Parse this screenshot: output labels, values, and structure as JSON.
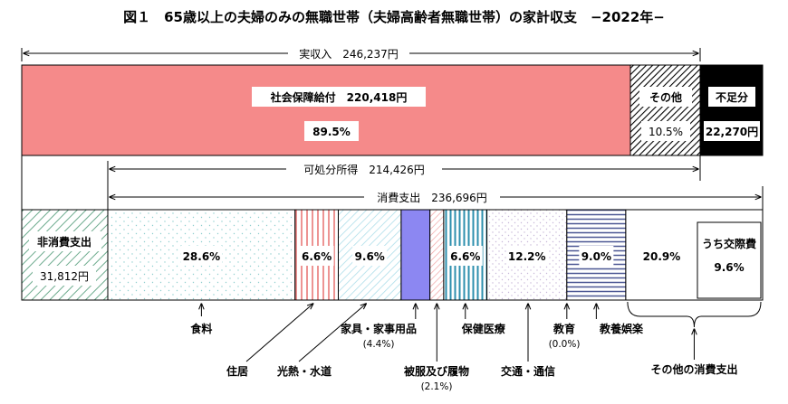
{
  "chart_data": {
    "type": "bar",
    "title": "図１　65歳以上の夫婦のみの無職世帯（夫婦高齢者無職世帯）の家計収支　−2022年−",
    "top_bar": {
      "total_label": "実収入　246,237円",
      "segments": [
        {
          "name": "社会保障給付",
          "amount_label": "社会保障給付　220,418円",
          "value": 220418,
          "percent_label": "89.5%",
          "pct": 89.5,
          "color": "#f58a8a",
          "pattern": "solid"
        },
        {
          "name": "その他",
          "label": "その他",
          "value": 25819,
          "percent_label": "10.5%",
          "pct": 10.5,
          "pattern": "diagonal-hatch"
        },
        {
          "name": "不足分",
          "label": "不足分",
          "value": 22270,
          "amount_label": "22,270円",
          "color": "#000000",
          "pattern": "solid"
        }
      ]
    },
    "disposable_income_label": "可処分所得　214,426円",
    "consumption_label": "消費支出　236,696円",
    "bottom_bar": {
      "non_consumption": {
        "name": "非消費支出",
        "label": "非消費支出",
        "value": 31812,
        "amount_label": "31,812円",
        "pattern": "green-diagonal"
      },
      "segments": [
        {
          "name": "食料",
          "pct": 28.6,
          "percent_label": "28.6%",
          "pattern": "dots",
          "callout": "食料"
        },
        {
          "name": "住居",
          "pct": 6.6,
          "percent_label": "6.6%",
          "pattern": "red-vertical",
          "callout": "住居"
        },
        {
          "name": "光熱・水道",
          "pct": 9.6,
          "percent_label": "9.6%",
          "pattern": "blue-diagonal",
          "callout": "光熱・水道"
        },
        {
          "name": "家具・家事用品",
          "pct": 4.4,
          "percent_label": "",
          "color": "#8c87f2",
          "pattern": "solid",
          "callout": "家具・家事用品",
          "callout_sub": "(4.4%)"
        },
        {
          "name": "被服及び履物",
          "pct": 2.1,
          "percent_label": "",
          "pattern": "red-diagonal",
          "callout": "被服及び履物",
          "callout_sub": "(2.1%)"
        },
        {
          "name": "保健医療",
          "pct": 6.6,
          "percent_label": "6.6%",
          "pattern": "teal-vertical",
          "callout": "保健医療"
        },
        {
          "name": "交通・通信",
          "pct": 12.2,
          "percent_label": "12.2%",
          "pattern": "dots-light",
          "callout": "交通・通信"
        },
        {
          "name": "教育",
          "pct": 0.0,
          "percent_label": "",
          "pattern": "none",
          "callout": "教育",
          "callout_sub": "(0.0%)"
        },
        {
          "name": "教養娯楽",
          "pct": 9.0,
          "percent_label": "9.0%",
          "pattern": "navy-horizontal",
          "callout": "教養娯楽"
        },
        {
          "name": "その他の消費支出",
          "pct": 20.9,
          "percent_label": "20.9%",
          "pattern": "white",
          "callout": "その他の消費支出",
          "inner_label": "うち交際費",
          "inner_percent_label": "9.6%"
        }
      ]
    }
  }
}
